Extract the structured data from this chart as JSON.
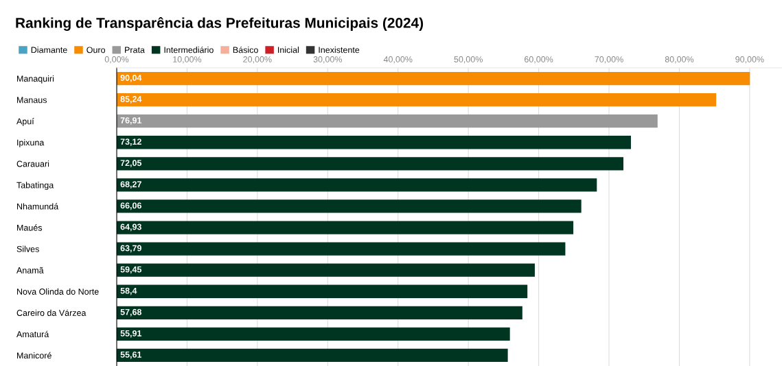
{
  "chart_data": {
    "type": "bar",
    "orientation": "horizontal",
    "title": "Ranking de Transparência das Prefeituras Municipais (2024)",
    "categories": [
      "Manaquiri",
      "Manaus",
      "Apuí",
      "Ipixuna",
      "Carauari",
      "Tabatinga",
      "Nhamundá",
      "Maués",
      "Silves",
      "Anamã",
      "Nova Olinda do Norte",
      "Careiro da Várzea",
      "Amaturá",
      "Manicoré"
    ],
    "series": [
      {
        "name": "Diamante",
        "color": "#4ba3c3",
        "values": [
          null,
          null,
          null,
          null,
          null,
          null,
          null,
          null,
          null,
          null,
          null,
          null,
          null,
          null
        ]
      },
      {
        "name": "Ouro",
        "color": "#f78c00",
        "values": [
          90.04,
          85.24,
          null,
          null,
          null,
          null,
          null,
          null,
          null,
          null,
          null,
          null,
          null,
          null
        ],
        "value_labels": [
          "90,04",
          "85,24",
          null,
          null,
          null,
          null,
          null,
          null,
          null,
          null,
          null,
          null,
          null,
          null
        ]
      },
      {
        "name": "Prata",
        "color": "#999999",
        "values": [
          null,
          null,
          76.91,
          null,
          null,
          null,
          null,
          null,
          null,
          null,
          null,
          null,
          null,
          null
        ],
        "value_labels": [
          null,
          null,
          "76,91",
          null,
          null,
          null,
          null,
          null,
          null,
          null,
          null,
          null,
          null,
          null
        ]
      },
      {
        "name": "Intermediário",
        "color": "#003522",
        "values": [
          null,
          null,
          null,
          73.12,
          72.05,
          68.27,
          66.06,
          64.93,
          63.79,
          59.45,
          58.4,
          57.68,
          55.91,
          55.61
        ],
        "value_labels": [
          null,
          null,
          null,
          "73,12",
          "72,05",
          "68,27",
          "66,06",
          "64,93",
          "63,79",
          "59,45",
          "58,4",
          "57,68",
          "55,91",
          "55,61"
        ]
      },
      {
        "name": "Básico",
        "color": "#f4b09a",
        "values": [
          null,
          null,
          null,
          null,
          null,
          null,
          null,
          null,
          null,
          null,
          null,
          null,
          null,
          null
        ]
      },
      {
        "name": "Inicial",
        "color": "#cc1f26",
        "values": [
          null,
          null,
          null,
          null,
          null,
          null,
          null,
          null,
          null,
          null,
          null,
          null,
          null,
          null
        ]
      },
      {
        "name": "Inexistente",
        "color": "#333333",
        "values": [
          null,
          null,
          null,
          null,
          null,
          null,
          null,
          null,
          null,
          null,
          null,
          null,
          null,
          null
        ]
      }
    ],
    "xlim": [
      0,
      94.6
    ],
    "xticks": [
      {
        "value": 0,
        "label": "0,00%"
      },
      {
        "value": 10,
        "label": "10,00%"
      },
      {
        "value": 20,
        "label": "20,00%"
      },
      {
        "value": 30,
        "label": "30,00%"
      },
      {
        "value": 40,
        "label": "40,00%"
      },
      {
        "value": 50,
        "label": "50,00%"
      },
      {
        "value": 60,
        "label": "60,00%"
      },
      {
        "value": 70,
        "label": "70,00%"
      },
      {
        "value": 80,
        "label": "80,00%"
      },
      {
        "value": 90,
        "label": "90,00%"
      }
    ],
    "grid": "x",
    "legend": "top left"
  }
}
